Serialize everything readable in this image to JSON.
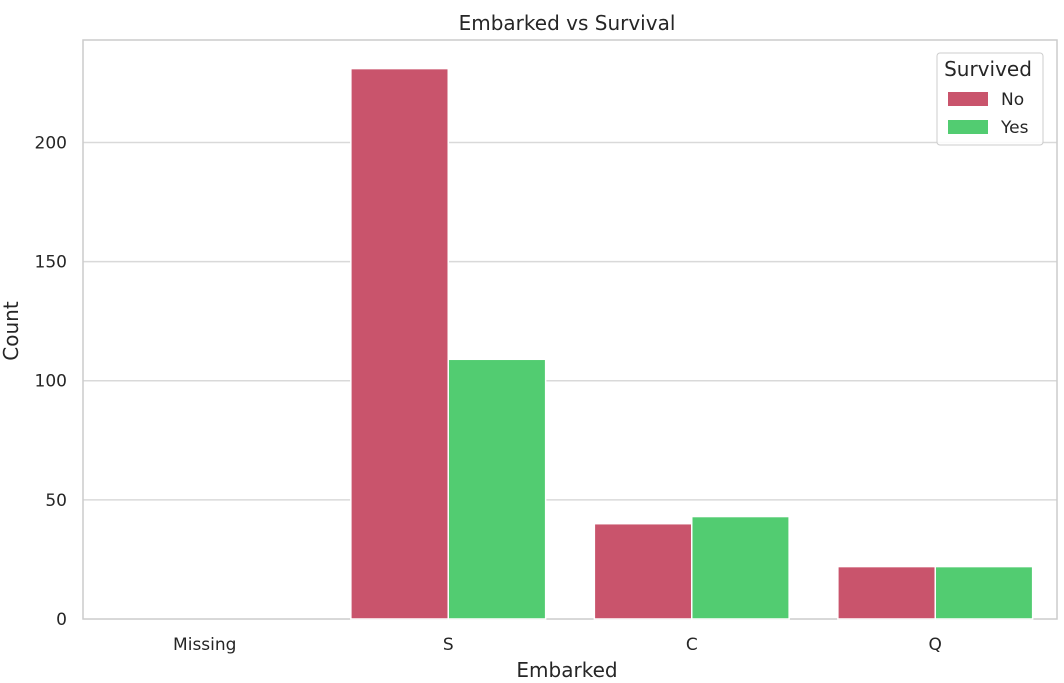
{
  "chart_data": {
    "type": "bar",
    "title": "Embarked vs Survival",
    "xlabel": "Embarked",
    "ylabel": "Count",
    "categories": [
      "Missing",
      "S",
      "C",
      "Q"
    ],
    "series": [
      {
        "name": "No",
        "values": [
          0,
          231,
          40,
          22
        ]
      },
      {
        "name": "Yes",
        "values": [
          0,
          109,
          43,
          22
        ]
      }
    ],
    "ylim": [
      0,
      243
    ],
    "yticks": [
      0,
      50,
      100,
      150,
      200
    ],
    "grid": true,
    "legend": {
      "title": "Survived",
      "placement": "top-right"
    },
    "colors": {
      "No": "#c9546c",
      "Yes": "#52cc71"
    }
  }
}
